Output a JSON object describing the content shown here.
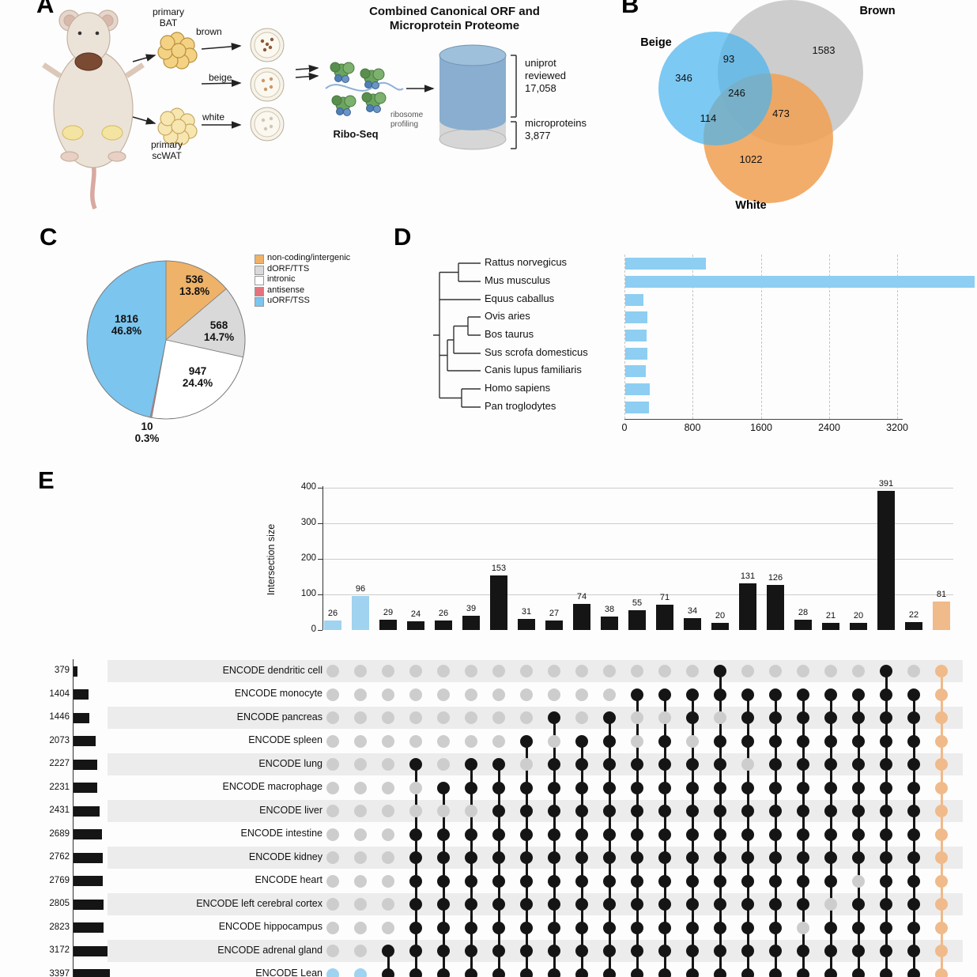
{
  "panels": {
    "a": "A",
    "b": "B",
    "c": "C",
    "d": "D",
    "e": "E"
  },
  "panel_a": {
    "title_l1": "Combined Canonical ORF and",
    "title_l2": "Microprotein Proteome",
    "primary_bat_l1": "primary",
    "primary_bat_l2": "BAT",
    "brown": "brown",
    "beige": "beige",
    "white": "white",
    "primary_scwat_l1": "primary",
    "primary_scwat_l2": "scWAT",
    "ribo_seq": "Ribo-Seq",
    "ribosome_profiling_l1": "ribosome",
    "ribosome_profiling_l2": "profiling",
    "uniprot_l1": "uniprot",
    "uniprot_l2": "reviewed",
    "uniprot_value": "17,058",
    "micro_l1": "microproteins",
    "micro_value": "3,877"
  },
  "chart_data": [
    {
      "id": "panel_b_venn",
      "type": "venn",
      "sets": [
        "Beige",
        "Brown",
        "White"
      ],
      "colors": {
        "beige": "#49b4ef",
        "brown": "#c9c9c9",
        "white": "#f0a255"
      },
      "regions": {
        "beige_only": "346",
        "brown_only": "1583",
        "white_only": "1022",
        "beige_brown": "93",
        "beige_white": "114",
        "brown_white": "473",
        "all": "246"
      }
    },
    {
      "id": "panel_c_pie",
      "type": "pie",
      "slices": [
        {
          "label": "non-coding/intergenic",
          "color": "#eeb269",
          "value": "536",
          "pct": "13.8%"
        },
        {
          "label": "dORF/TTS",
          "color": "#d9d9d9",
          "value": "568",
          "pct": "14.7%"
        },
        {
          "label": "intronic",
          "color": "#ffffff",
          "value": "947",
          "pct": "24.4%"
        },
        {
          "label": "antisense",
          "color": "#e4737d",
          "value": "10",
          "pct": "0.3%"
        },
        {
          "label": "uORF/TSS",
          "color": "#7cc5ee",
          "value": "1816",
          "pct": "46.8%"
        }
      ]
    },
    {
      "id": "panel_d_bars",
      "type": "bar",
      "orientation": "horizontal",
      "color": "#8dcef2",
      "categories": [
        "Rattus norvegicus",
        "Mus musculus",
        "Equus caballus",
        "Ovis aries",
        "Bos taurus",
        "Sus scrofa domesticus",
        "Canis lupus familiaris",
        "Homo sapiens",
        "Pan troglodytes"
      ],
      "values": [
        950,
        4100,
        210,
        260,
        255,
        260,
        240,
        285,
        280
      ],
      "xticks": [
        "0",
        "800",
        "1600",
        "2400",
        "3200"
      ],
      "xlim": [
        0,
        3200
      ],
      "grid": "dashed-vertical"
    },
    {
      "id": "panel_e_upset",
      "type": "upset",
      "ylabel": "Intersection size",
      "yticks": [
        "0",
        "100",
        "200",
        "300",
        "400"
      ],
      "ylim": [
        0,
        400
      ],
      "colors": {
        "black": "#151515",
        "blue": "#9fd3ef",
        "orange": "#f0ba8a",
        "dot_gray": "#cdcdcd"
      },
      "sets": [
        {
          "name": "ENCODE dendritic cell",
          "size": 379
        },
        {
          "name": "ENCODE monocyte",
          "size": 1404
        },
        {
          "name": "ENCODE pancreas",
          "size": 1446
        },
        {
          "name": "ENCODE spleen",
          "size": 2073
        },
        {
          "name": "ENCODE lung",
          "size": 2227
        },
        {
          "name": "ENCODE macrophage",
          "size": 2231
        },
        {
          "name": "ENCODE liver",
          "size": 2431
        },
        {
          "name": "ENCODE intestine",
          "size": 2689
        },
        {
          "name": "ENCODE kidney",
          "size": 2762
        },
        {
          "name": "ENCODE heart",
          "size": 2769
        },
        {
          "name": "ENCODE left cerebral cortex",
          "size": 2805
        },
        {
          "name": "ENCODE hippocampus",
          "size": 2823
        },
        {
          "name": "ENCODE adrenal gland",
          "size": 3172
        },
        {
          "name": "ENCODE Lean",
          "size": 3397
        }
      ],
      "columns": [
        {
          "value": 26,
          "highlight": "blue",
          "members": [
            14
          ]
        },
        {
          "value": 96,
          "highlight": "blue",
          "members": [
            14
          ]
        },
        {
          "value": 29,
          "highlight": "black",
          "members": [
            13,
            14
          ]
        },
        {
          "value": 24,
          "highlight": "black",
          "members": [
            5,
            8,
            9,
            10,
            11,
            12,
            13,
            14
          ]
        },
        {
          "value": 26,
          "highlight": "black",
          "members": [
            6,
            8,
            9,
            10,
            11,
            12,
            13,
            14
          ]
        },
        {
          "value": 39,
          "highlight": "black",
          "members": [
            5,
            6,
            8,
            9,
            10,
            11,
            12,
            13,
            14
          ]
        },
        {
          "value": 153,
          "highlight": "black",
          "members": [
            5,
            6,
            7,
            8,
            9,
            10,
            11,
            12,
            13,
            14
          ]
        },
        {
          "value": 31,
          "highlight": "black",
          "members": [
            4,
            6,
            7,
            8,
            9,
            10,
            11,
            12,
            13,
            14
          ]
        },
        {
          "value": 27,
          "highlight": "black",
          "members": [
            3,
            5,
            6,
            7,
            8,
            9,
            10,
            11,
            12,
            13,
            14
          ]
        },
        {
          "value": 74,
          "highlight": "black",
          "members": [
            4,
            5,
            6,
            7,
            8,
            9,
            10,
            11,
            12,
            13,
            14
          ]
        },
        {
          "value": 38,
          "highlight": "black",
          "members": [
            3,
            4,
            5,
            6,
            7,
            8,
            9,
            10,
            11,
            12,
            13,
            14
          ]
        },
        {
          "value": 55,
          "highlight": "black",
          "members": [
            2,
            5,
            6,
            7,
            8,
            9,
            10,
            11,
            12,
            13,
            14
          ]
        },
        {
          "value": 71,
          "highlight": "black",
          "members": [
            2,
            4,
            5,
            6,
            7,
            8,
            9,
            10,
            11,
            12,
            13,
            14
          ]
        },
        {
          "value": 34,
          "highlight": "black",
          "members": [
            2,
            3,
            5,
            6,
            7,
            8,
            9,
            10,
            11,
            12,
            13,
            14
          ]
        },
        {
          "value": 20,
          "highlight": "black",
          "members": [
            1,
            2,
            4,
            5,
            6,
            7,
            8,
            9,
            10,
            11,
            12,
            13,
            14
          ]
        },
        {
          "value": 131,
          "highlight": "black",
          "members": [
            2,
            3,
            4,
            6,
            7,
            8,
            9,
            10,
            11,
            12,
            13,
            14
          ]
        },
        {
          "value": 126,
          "highlight": "black",
          "members": [
            2,
            3,
            4,
            5,
            6,
            7,
            8,
            9,
            10,
            11,
            12,
            13,
            14
          ]
        },
        {
          "value": 28,
          "highlight": "black",
          "members": [
            2,
            3,
            4,
            5,
            6,
            7,
            8,
            9,
            10,
            11,
            13,
            14
          ]
        },
        {
          "value": 21,
          "highlight": "black",
          "members": [
            2,
            3,
            4,
            5,
            6,
            7,
            8,
            9,
            10,
            12,
            13,
            14
          ]
        },
        {
          "value": 20,
          "highlight": "black",
          "members": [
            2,
            3,
            4,
            5,
            6,
            7,
            8,
            9,
            11,
            12,
            13,
            14
          ]
        },
        {
          "value": 391,
          "highlight": "black",
          "members": [
            1,
            2,
            3,
            4,
            5,
            6,
            7,
            8,
            9,
            10,
            11,
            12,
            13,
            14
          ]
        },
        {
          "value": 22,
          "highlight": "black",
          "members": [
            2,
            3,
            4,
            5,
            6,
            7,
            8,
            9,
            10,
            11,
            12,
            13,
            14
          ]
        },
        {
          "value": 81,
          "highlight": "orange",
          "members": [
            1,
            2,
            3,
            4,
            5,
            6,
            7,
            8,
            9,
            10,
            11,
            12,
            13,
            14
          ]
        }
      ]
    }
  ]
}
